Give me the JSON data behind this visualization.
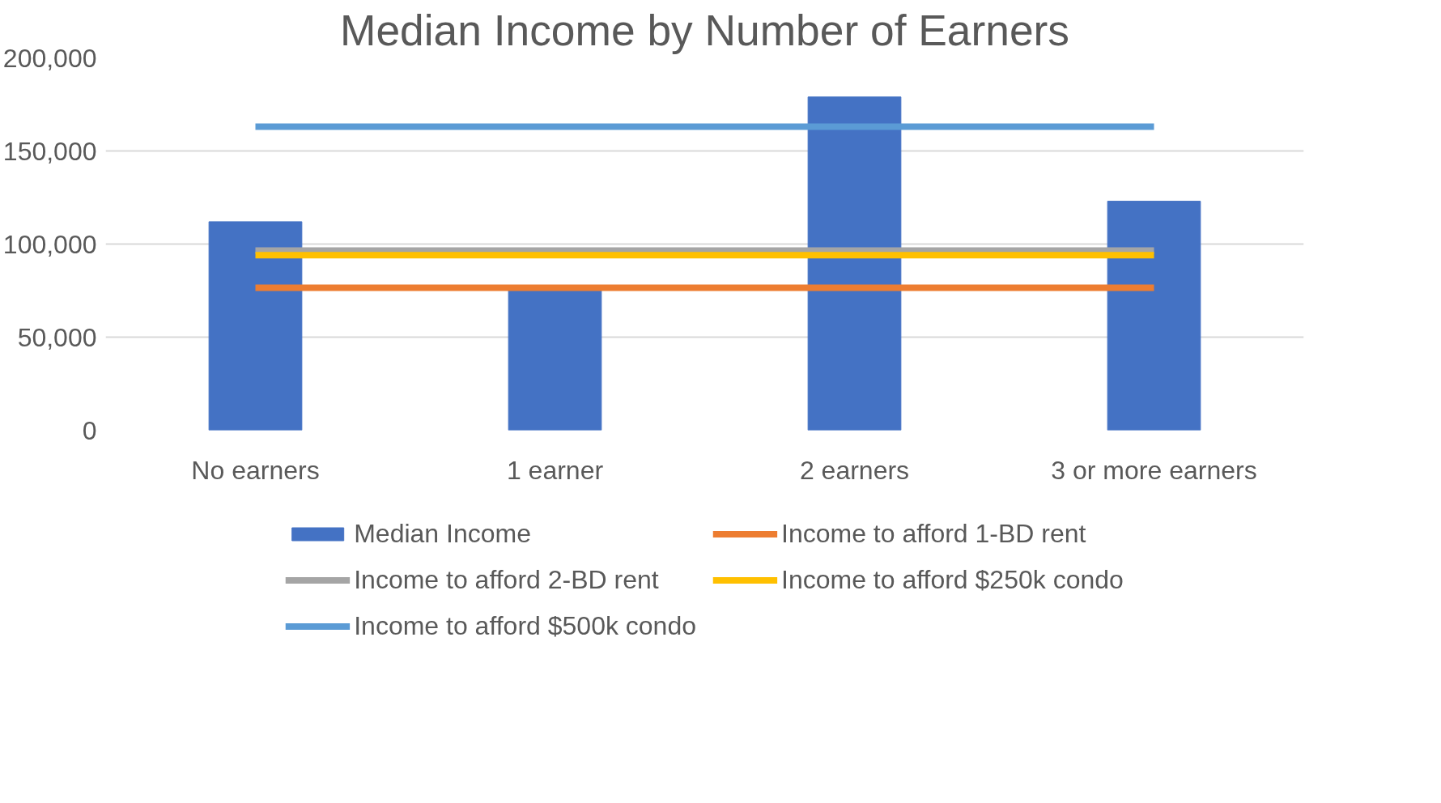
{
  "chart_data": {
    "type": "bar",
    "title": "Median Income by Number of Earners",
    "categories": [
      "No earners",
      "1 earner",
      "2 earners",
      "3 or more earners"
    ],
    "series": [
      {
        "name": "Median Income",
        "color": "#4472c4",
        "values": [
          112000,
          75000,
          179000,
          123000
        ]
      },
      {
        "name": "Income to afford 1-BD rent",
        "type": "line",
        "color": "#ed7d31",
        "values": [
          76500,
          76500,
          76500,
          76500
        ]
      },
      {
        "name": "Income to afford 2-BD rent",
        "type": "line",
        "color": "#a5a5a5",
        "values": [
          96500,
          96500,
          96500,
          96500
        ]
      },
      {
        "name": "Income to afford $250k condo",
        "type": "line",
        "color": "#ffc000",
        "values": [
          94000,
          94000,
          94000,
          94000
        ]
      },
      {
        "name": "Income to afford $500k condo",
        "type": "line",
        "color": "#5b9bd5",
        "values": [
          163000,
          163000,
          163000,
          163000
        ]
      }
    ],
    "ylim": [
      0,
      200000
    ],
    "yticks": [
      {
        "value": 0,
        "label": "0"
      },
      {
        "value": 50000,
        "label": "50,000"
      },
      {
        "value": 100000,
        "label": "100,000"
      },
      {
        "value": 150000,
        "label": "150,000"
      },
      {
        "value": 200000,
        "label": "200,000"
      }
    ],
    "grid": "y",
    "legend": "bottom"
  }
}
